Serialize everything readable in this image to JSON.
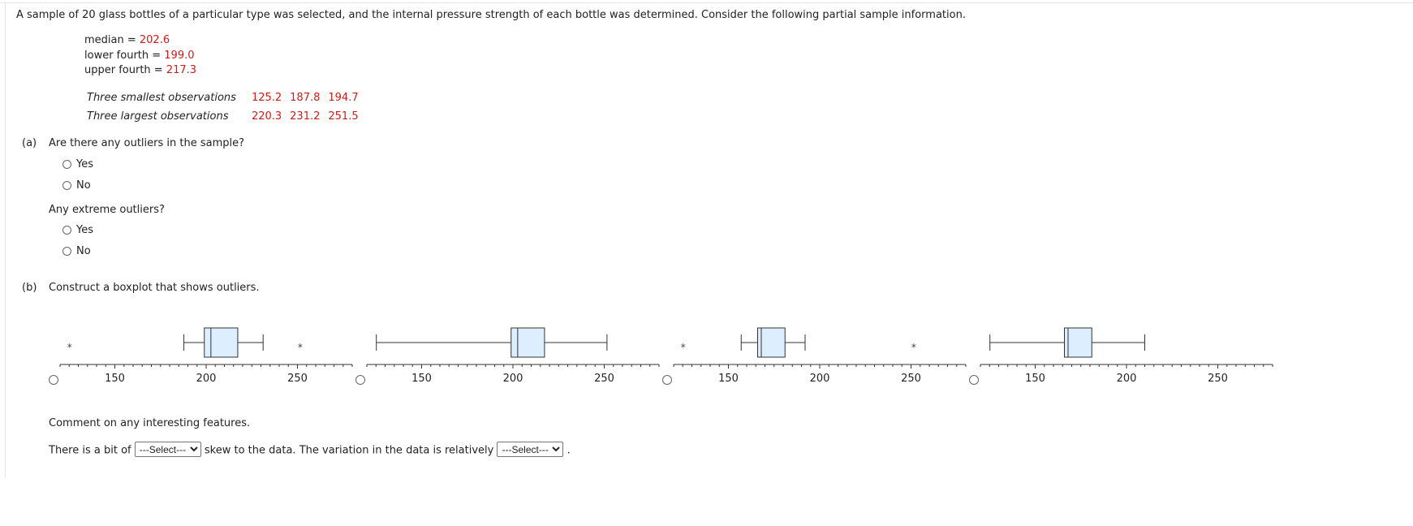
{
  "intro": "A sample of 20 glass bottles of a particular type was selected, and the internal pressure strength of each bottle was determined. Consider the following partial sample information.",
  "stats": [
    {
      "label": "median = ",
      "value": "202.6"
    },
    {
      "label": "lower fourth = ",
      "value": "199.0"
    },
    {
      "label": "upper fourth = ",
      "value": "217.3"
    }
  ],
  "observations": [
    {
      "label": "Three smallest observations",
      "values": [
        "125.2",
        "187.8",
        "194.7"
      ]
    },
    {
      "label": "Three largest observations",
      "values": [
        "220.3",
        "231.2",
        "251.5"
      ]
    }
  ],
  "part_a": {
    "tag": "(a)",
    "question": "Are there any outliers in the sample?",
    "options": [
      "Yes",
      "No"
    ],
    "question2": "Any extreme outliers?",
    "options2": [
      "Yes",
      "No"
    ]
  },
  "part_b": {
    "tag": "(b)",
    "question": "Construct a boxplot that shows outliers.",
    "tick_labels": [
      "150",
      "200",
      "250"
    ],
    "axis_range": [
      120,
      280
    ],
    "outlier_symbol": "*",
    "boxplots": [
      {
        "whisker_low": 187.8,
        "q1": 199.0,
        "median": 202.6,
        "q3": 217.3,
        "whisker_high": 231.2,
        "outliers": [
          125.2,
          251.5
        ]
      },
      {
        "whisker_low": 125.2,
        "q1": 199.0,
        "median": 202.6,
        "q3": 217.3,
        "whisker_high": 251.5,
        "outliers": []
      },
      {
        "whisker_low": 157,
        "q1": 166,
        "median": 168,
        "q3": 181,
        "whisker_high": 192,
        "outliers": [
          125.2,
          251.5
        ]
      },
      {
        "whisker_low": 125.2,
        "q1": 166,
        "median": 168,
        "q3": 181,
        "whisker_high": 210,
        "outliers": []
      }
    ],
    "comment_prompt": "Comment on any interesting features.",
    "sentence_part1": "There is a bit of",
    "select1_value": "---Select---",
    "sentence_part2": "skew to the data. The variation in the data is relatively",
    "select2_value": "---Select---",
    "sentence_end": "."
  }
}
